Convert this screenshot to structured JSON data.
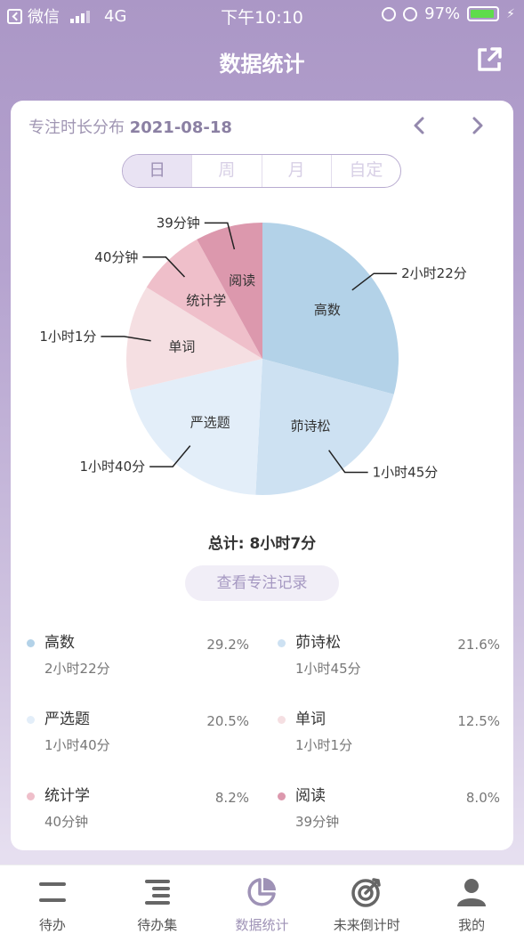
{
  "status_bar": {
    "carrier": "微信",
    "network": "4G",
    "time": "下午10:10",
    "battery": "97%"
  },
  "nav": {
    "title": "数据统计",
    "share_icon": "share-icon"
  },
  "card": {
    "title_prefix": "专注时长分布",
    "date": "2021-08-18",
    "segments": [
      "日",
      "周",
      "月",
      "自定"
    ],
    "selected_segment": "日",
    "total": "总计: 8小时7分",
    "record_button": "查看专注记录"
  },
  "chart_data": {
    "type": "pie",
    "slices": [
      {
        "label": "高数",
        "duration": "2小时22分",
        "percent": 29.2,
        "color": "#b3d2e8"
      },
      {
        "label": "茆诗松",
        "duration": "1小时45分",
        "percent": 21.6,
        "color": "#cde1f2"
      },
      {
        "label": "严选题",
        "duration": "1小时40分",
        "percent": 20.5,
        "color": "#e3eef9"
      },
      {
        "label": "单词",
        "duration": "1小时1分",
        "percent": 12.5,
        "color": "#f5dfe2"
      },
      {
        "label": "统计学",
        "duration": "40分钟",
        "percent": 8.2,
        "color": "#efbfca"
      },
      {
        "label": "阅读",
        "duration": "39分钟",
        "percent": 8.0,
        "color": "#dc98ad"
      }
    ]
  },
  "legend": [
    {
      "name": "高数",
      "time": "2小时22分",
      "percent": "29.2%",
      "color": "#b3d2e8"
    },
    {
      "name": "茆诗松",
      "time": "1小时45分",
      "percent": "21.6%",
      "color": "#cde1f2"
    },
    {
      "name": "严选题",
      "time": "1小时40分",
      "percent": "20.5%",
      "color": "#e3eef9"
    },
    {
      "name": "单词",
      "time": "1小时1分",
      "percent": "12.5%",
      "color": "#f5dfe2"
    },
    {
      "name": "统计学",
      "time": "40分钟",
      "percent": "8.2%",
      "color": "#efbfca"
    },
    {
      "name": "阅读",
      "time": "39分钟",
      "percent": "8.0%",
      "color": "#dc98ad"
    }
  ],
  "tabbar": {
    "items": [
      {
        "label": "待办",
        "icon": "todo-icon"
      },
      {
        "label": "待办集",
        "icon": "todo-collection-icon"
      },
      {
        "label": "数据统计",
        "icon": "stats-pie-icon",
        "active": true
      },
      {
        "label": "未来倒计时",
        "icon": "countdown-target-icon"
      },
      {
        "label": "我的",
        "icon": "profile-icon"
      }
    ]
  },
  "colors": {
    "accent": "#9e92b6",
    "header_bg": "#ab97c6"
  }
}
